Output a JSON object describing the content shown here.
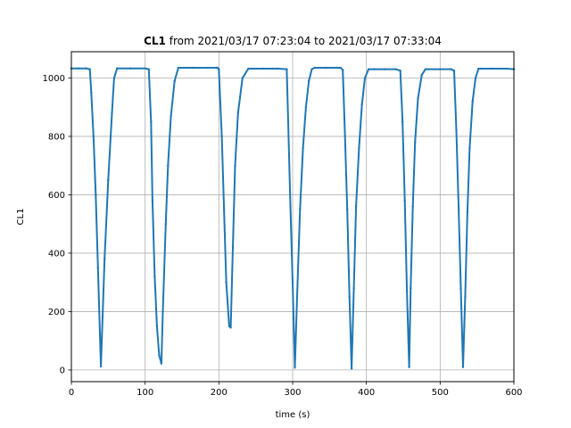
{
  "chart_data": {
    "type": "line",
    "title_bold": "CL1",
    "title_rest": " from 2021/03/17 07:23:04 to 2021/03/17 07:33:04",
    "xlabel": "time (s)",
    "ylabel": "CL1",
    "xlim": [
      0,
      600
    ],
    "ylim": [
      -40,
      1090
    ],
    "x_ticks": [
      0,
      100,
      200,
      300,
      400,
      500,
      600
    ],
    "y_ticks": [
      0,
      200,
      400,
      600,
      800,
      1000
    ],
    "grid": true,
    "line_color": "#1f77b4",
    "series": [
      {
        "x": [
          0,
          10,
          20,
          25,
          27,
          30,
          33,
          36,
          40,
          45,
          50,
          55,
          58,
          62,
          80,
          100,
          105,
          108,
          110,
          113,
          116,
          119,
          122,
          124,
          128,
          131,
          135,
          140,
          145,
          165,
          185,
          198,
          200,
          204,
          207,
          210,
          214,
          216,
          219,
          222,
          226,
          232,
          240,
          260,
          280,
          292,
          294,
          297,
          300,
          303,
          306,
          310,
          314,
          318,
          322,
          326,
          330,
          345,
          360,
          365,
          368,
          371,
          374,
          377,
          380,
          383,
          386,
          390,
          394,
          398,
          403,
          410,
          425,
          440,
          446,
          449,
          452,
          455,
          458,
          460,
          463,
          466,
          470,
          475,
          480,
          484,
          500,
          515,
          519,
          522,
          525,
          528,
          531,
          534,
          537,
          540,
          544,
          548,
          552,
          556,
          570,
          590,
          600
        ],
        "y": [
          1033,
          1033,
          1033,
          1030,
          950,
          800,
          600,
          350,
          12,
          380,
          650,
          880,
          1000,
          1033,
          1033,
          1033,
          1030,
          850,
          580,
          320,
          150,
          50,
          22,
          200,
          500,
          700,
          870,
          990,
          1035,
          1035,
          1035,
          1035,
          1030,
          800,
          550,
          300,
          150,
          145,
          420,
          700,
          880,
          1000,
          1032,
          1032,
          1032,
          1030,
          850,
          560,
          300,
          8,
          250,
          550,
          760,
          900,
          990,
          1030,
          1035,
          1035,
          1035,
          1035,
          1028,
          800,
          550,
          250,
          5,
          280,
          560,
          760,
          910,
          1000,
          1030,
          1030,
          1030,
          1030,
          1025,
          850,
          580,
          270,
          10,
          280,
          560,
          780,
          930,
          1010,
          1030,
          1030,
          1030,
          1030,
          1025,
          820,
          560,
          280,
          10,
          250,
          540,
          760,
          920,
          1000,
          1032,
          1032,
          1032,
          1032,
          1030
        ]
      }
    ]
  }
}
